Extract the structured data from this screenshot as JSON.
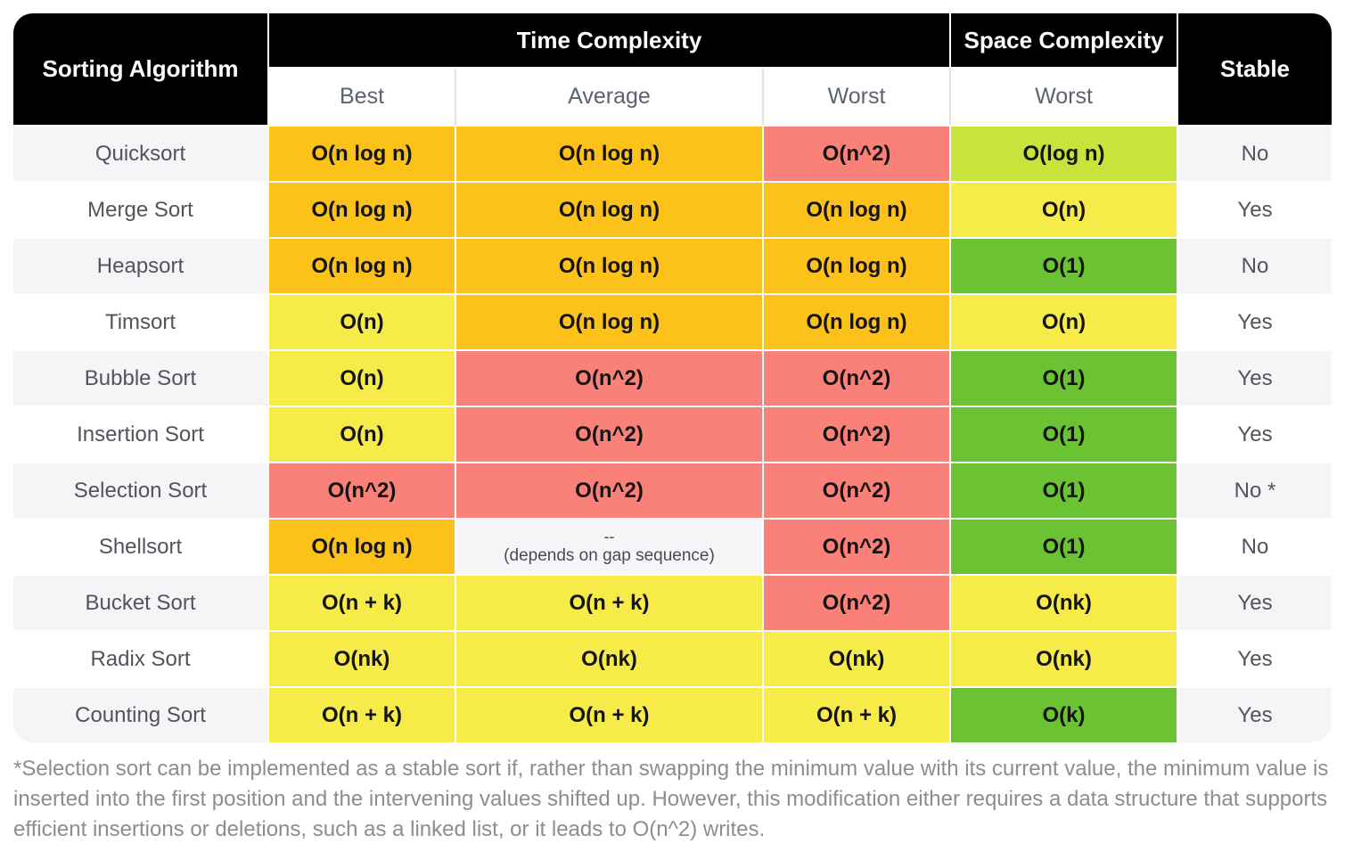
{
  "table": {
    "corner_header": "Sorting Algorithm",
    "time_header": "Time Complexity",
    "space_header": "Space Complexity",
    "stable_header": "Stable",
    "subheaders": [
      "Best",
      "Average",
      "Worst",
      "Worst"
    ],
    "rows": [
      {
        "name": "Quicksort",
        "cells": [
          {
            "t": "O(n log n)",
            "c": "orange"
          },
          {
            "t": "O(n log n)",
            "c": "orange"
          },
          {
            "t": "O(n^2)",
            "c": "red"
          },
          {
            "t": "O(log n)",
            "c": "yellowgreen"
          }
        ],
        "stable": "No"
      },
      {
        "name": "Merge Sort",
        "cells": [
          {
            "t": "O(n log n)",
            "c": "orange"
          },
          {
            "t": "O(n log n)",
            "c": "orange"
          },
          {
            "t": "O(n log n)",
            "c": "orange"
          },
          {
            "t": "O(n)",
            "c": "yellow"
          }
        ],
        "stable": "Yes"
      },
      {
        "name": "Heapsort",
        "cells": [
          {
            "t": "O(n log n)",
            "c": "orange"
          },
          {
            "t": "O(n log n)",
            "c": "orange"
          },
          {
            "t": "O(n log n)",
            "c": "orange"
          },
          {
            "t": "O(1)",
            "c": "green"
          }
        ],
        "stable": "No"
      },
      {
        "name": "Timsort",
        "cells": [
          {
            "t": "O(n)",
            "c": "yellow"
          },
          {
            "t": "O(n log n)",
            "c": "orange"
          },
          {
            "t": "O(n log n)",
            "c": "orange"
          },
          {
            "t": "O(n)",
            "c": "yellow"
          }
        ],
        "stable": "Yes"
      },
      {
        "name": "Bubble Sort",
        "cells": [
          {
            "t": "O(n)",
            "c": "yellow"
          },
          {
            "t": "O(n^2)",
            "c": "red"
          },
          {
            "t": "O(n^2)",
            "c": "red"
          },
          {
            "t": "O(1)",
            "c": "green"
          }
        ],
        "stable": "Yes"
      },
      {
        "name": "Insertion Sort",
        "cells": [
          {
            "t": "O(n)",
            "c": "yellow"
          },
          {
            "t": "O(n^2)",
            "c": "red"
          },
          {
            "t": "O(n^2)",
            "c": "red"
          },
          {
            "t": "O(1)",
            "c": "green"
          }
        ],
        "stable": "Yes"
      },
      {
        "name": "Selection Sort",
        "cells": [
          {
            "t": "O(n^2)",
            "c": "red"
          },
          {
            "t": "O(n^2)",
            "c": "red"
          },
          {
            "t": "O(n^2)",
            "c": "red"
          },
          {
            "t": "O(1)",
            "c": "green"
          }
        ],
        "stable": "No *"
      },
      {
        "name": "Shellsort",
        "cells": [
          {
            "t": "O(n log n)",
            "c": "orange"
          },
          {
            "t": "--",
            "note": "(depends on gap sequence)",
            "c": "note"
          },
          {
            "t": "O(n^2)",
            "c": "red"
          },
          {
            "t": "O(1)",
            "c": "green"
          }
        ],
        "stable": "No"
      },
      {
        "name": "Bucket Sort",
        "cells": [
          {
            "t": "O(n + k)",
            "c": "yellow"
          },
          {
            "t": "O(n + k)",
            "c": "yellow"
          },
          {
            "t": "O(n^2)",
            "c": "red"
          },
          {
            "t": "O(nk)",
            "c": "yellow"
          }
        ],
        "stable": "Yes"
      },
      {
        "name": "Radix Sort",
        "cells": [
          {
            "t": "O(nk)",
            "c": "yellow"
          },
          {
            "t": "O(nk)",
            "c": "yellow"
          },
          {
            "t": "O(nk)",
            "c": "yellow"
          },
          {
            "t": "O(nk)",
            "c": "yellow"
          }
        ],
        "stable": "Yes"
      },
      {
        "name": "Counting Sort",
        "cells": [
          {
            "t": "O(n + k)",
            "c": "yellow"
          },
          {
            "t": "O(n + k)",
            "c": "yellow"
          },
          {
            "t": "O(n + k)",
            "c": "yellow"
          },
          {
            "t": "O(k)",
            "c": "green"
          }
        ],
        "stable": "Yes"
      }
    ]
  },
  "footnote": "*Selection sort can be implemented as a stable sort if, rather than swapping the minimum value with its current value, the minimum value is inserted into the first position and the intervening values shifted up. However, this modification either requires a data structure that supports efficient insertions or deletions, such as a linked list, or it leads to O(n^2) writes.",
  "colors": {
    "orange": "#FCC21A",
    "red": "#F9817A",
    "yellow": "#F7EB49",
    "green": "#6BC334",
    "yellowgreen": "#C7E33C",
    "header_bg": "#000000",
    "row_alt": "#F5F5F7"
  },
  "chart_data": {
    "type": "table",
    "title": "Sorting algorithm complexity comparison",
    "columns": [
      "Sorting Algorithm",
      "Time Complexity Best",
      "Time Complexity Average",
      "Time Complexity Worst",
      "Space Complexity Worst",
      "Stable"
    ],
    "rows": [
      [
        "Quicksort",
        "O(n log n)",
        "O(n log n)",
        "O(n^2)",
        "O(log n)",
        "No"
      ],
      [
        "Merge Sort",
        "O(n log n)",
        "O(n log n)",
        "O(n log n)",
        "O(n)",
        "Yes"
      ],
      [
        "Heapsort",
        "O(n log n)",
        "O(n log n)",
        "O(n log n)",
        "O(1)",
        "No"
      ],
      [
        "Timsort",
        "O(n)",
        "O(n log n)",
        "O(n log n)",
        "O(n)",
        "Yes"
      ],
      [
        "Bubble Sort",
        "O(n)",
        "O(n^2)",
        "O(n^2)",
        "O(1)",
        "Yes"
      ],
      [
        "Insertion Sort",
        "O(n)",
        "O(n^2)",
        "O(n^2)",
        "O(1)",
        "Yes"
      ],
      [
        "Selection Sort",
        "O(n^2)",
        "O(n^2)",
        "O(n^2)",
        "O(1)",
        "No *"
      ],
      [
        "Shellsort",
        "O(n log n)",
        "-- (depends on gap sequence)",
        "O(n^2)",
        "O(1)",
        "No"
      ],
      [
        "Bucket Sort",
        "O(n + k)",
        "O(n + k)",
        "O(n^2)",
        "O(nk)",
        "Yes"
      ],
      [
        "Radix Sort",
        "O(nk)",
        "O(nk)",
        "O(nk)",
        "O(nk)",
        "Yes"
      ],
      [
        "Counting Sort",
        "O(n + k)",
        "O(n + k)",
        "O(n + k)",
        "O(k)",
        "Yes"
      ]
    ]
  }
}
